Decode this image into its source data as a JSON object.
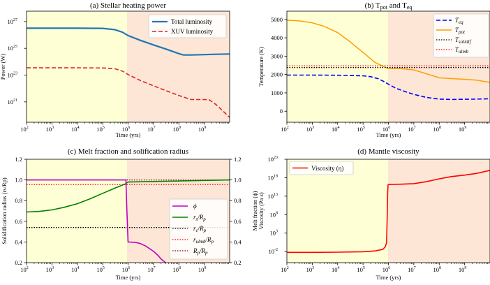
{
  "chart_data": [
    {
      "id": "a",
      "type": "line",
      "title": "(a) Stellar heating power",
      "xlabel": "Time (yrs)",
      "ylabel": "Power (W)",
      "xscale": "log",
      "yscale": "log",
      "xlim": [
        100,
        10000000000.0
      ],
      "ylim": [
        3e+19,
        6e+27
      ],
      "xticks": [
        {
          "b": "10",
          "e": "2"
        },
        {
          "b": "10",
          "e": "3"
        },
        {
          "b": "10",
          "e": "4"
        },
        {
          "b": "10",
          "e": "5"
        },
        {
          "b": "10",
          "e": "6"
        },
        {
          "b": "10",
          "e": "7"
        },
        {
          "b": "10",
          "e": "8"
        },
        {
          "b": "10",
          "e": "9"
        }
      ],
      "yticks": [
        {
          "b": "10",
          "e": "21"
        },
        {
          "b": "10",
          "e": "23"
        },
        {
          "b": "10",
          "e": "25"
        },
        {
          "b": "10",
          "e": "27"
        }
      ],
      "shade_split": 950000,
      "legend_position": "top-right",
      "series": [
        {
          "name": "Total luminosity",
          "color": "#1f77b4",
          "dash": "solid",
          "x": [
            100,
            1000.0,
            10000.0,
            100000.0,
            300000.0,
            600000.0,
            1000000.0,
            3000000.0,
            10000000.0,
            30000000.0,
            100000000.0,
            150000000.0,
            300000000.0,
            1000000000.0,
            3000000000.0,
            10000000000.0
          ],
          "y": [
            3.2e+26,
            3.2e+26,
            3.2e+26,
            3.1e+26,
            2.5e+26,
            1.6e+26,
            9e+25,
            4e+25,
            1.8e+25,
            9e+24,
            4e+24,
            3.2e+24,
            3.2e+24,
            3.4e+24,
            3.6e+24,
            3.8e+24
          ]
        },
        {
          "name": "XUV luminosity",
          "color": "#d62728",
          "dash": "dashed",
          "x": [
            100,
            1000.0,
            10000.0,
            100000.0,
            300000.0,
            600000.0,
            1000000.0,
            3000000.0,
            10000000.0,
            30000000.0,
            100000000.0,
            300000000.0,
            1000000000.0,
            1600000000.0,
            3000000000.0,
            10000000000.0
          ],
          "y": [
            3.5e+23,
            3.5e+23,
            3.5e+23,
            3.4e+23,
            3e+23,
            2e+23,
            1.1e+23,
            4e+22,
            1.6e+22,
            7e+21,
            3e+21,
            1.5e+21,
            1.5e+21,
            1.4e+21,
            6e+20,
            7e+19
          ]
        }
      ]
    },
    {
      "id": "b",
      "type": "line",
      "title_main": "(b) T",
      "title_sub1": "pot",
      "title_mid": " and T",
      "title_sub2": "eq",
      "xlabel": "Time (yrs)",
      "ylabel": "Temperature (K)",
      "xscale": "log",
      "yscale": "linear",
      "xlim": [
        100,
        10000000000.0
      ],
      "ylim": [
        -600,
        5450
      ],
      "xticks": [
        {
          "b": "10",
          "e": "2"
        },
        {
          "b": "10",
          "e": "3"
        },
        {
          "b": "10",
          "e": "4"
        },
        {
          "b": "10",
          "e": "5"
        },
        {
          "b": "10",
          "e": "6"
        },
        {
          "b": "10",
          "e": "7"
        },
        {
          "b": "10",
          "e": "8"
        },
        {
          "b": "10",
          "e": "9"
        }
      ],
      "yticks": [
        0,
        1000,
        2000,
        3000,
        4000,
        5000
      ],
      "shade_split": 950000,
      "legend_position": "top-right",
      "series": [
        {
          "name_main": "T",
          "name_sub": "eq",
          "color": "#0000ff",
          "dash": "dashed",
          "x": [
            100,
            1000.0,
            10000.0,
            100000.0,
            200000.0,
            400000.0,
            700000.0,
            1000000.0,
            2000000.0,
            5000000.0,
            10000000.0,
            30000000.0,
            100000000.0,
            300000000.0,
            1000000000.0,
            3000000000.0,
            10000000000.0
          ],
          "y": [
            1970,
            1970,
            1960,
            1930,
            1880,
            1770,
            1600,
            1470,
            1250,
            1050,
            920,
            760,
            660,
            640,
            650,
            660,
            680
          ]
        },
        {
          "name_main": "T",
          "name_sub": "pot",
          "color": "#ff9f00",
          "dash": "solid",
          "x": [
            100,
            300,
            1000.0,
            3000.0,
            10000.0,
            30000.0,
            100000.0,
            300000.0,
            1000000.0,
            3000000.0,
            10000000.0,
            30000000.0,
            100000000.0,
            300000000.0,
            1000000000.0,
            3000000000.0,
            10000000000.0
          ],
          "y": [
            4960,
            4920,
            4820,
            4620,
            4280,
            3800,
            3200,
            2650,
            2320,
            2320,
            2250,
            2050,
            1820,
            1780,
            1740,
            1690,
            1570
          ]
        },
        {
          "name_main": "T",
          "name_sub": "solidif",
          "color": "#000000",
          "dash": "dotted",
          "constant": 2380
        },
        {
          "name_main": "T",
          "name_sub": "ulmb",
          "color": "#ff0000",
          "dash": "dotted",
          "constant": 2470
        }
      ]
    },
    {
      "id": "c",
      "type": "line",
      "title": "(c) Melt fraction and solification radius",
      "xlabel": "Time (yrs)",
      "ylabel": "Solidification radius (rs/Rp)",
      "ylabel_right": "Melt fraction (ϕ)",
      "xscale": "log",
      "yscale": "linear",
      "xlim": [
        100,
        10000000000.0
      ],
      "ylim": [
        0.2,
        1.2
      ],
      "xticks": [
        {
          "b": "10",
          "e": "2"
        },
        {
          "b": "10",
          "e": "3"
        },
        {
          "b": "10",
          "e": "4"
        },
        {
          "b": "10",
          "e": "5"
        },
        {
          "b": "10",
          "e": "6"
        },
        {
          "b": "10",
          "e": "7"
        },
        {
          "b": "10",
          "e": "8"
        },
        {
          "b": "10",
          "e": "9"
        }
      ],
      "yticks": [
        "0.2",
        "0.4",
        "0.6",
        "0.8",
        "1.0",
        "1.2"
      ],
      "yticks_right": [
        "0.2",
        "0.4",
        "0.6",
        "0.8",
        "1.0",
        "1.2"
      ],
      "shade_split": 950000,
      "legend_position": "lower-right",
      "series": [
        {
          "name": "ϕ",
          "color": "#bf00bf",
          "dash": "solid",
          "x": [
            100,
            1000.0,
            10000.0,
            100000.0,
            500000.0,
            750000.0,
            820000.0,
            900000.0,
            1000000.0,
            2000000.0,
            3000000.0,
            5000000.0,
            10000000.0,
            15000000.0,
            20000000.0,
            25000000.0,
            30000000.0
          ],
          "y": [
            1.0,
            1.0,
            1.0,
            1.0,
            1.0,
            1.0,
            1.0,
            0.7,
            0.4,
            0.395,
            0.385,
            0.36,
            0.31,
            0.27,
            0.235,
            0.215,
            0.2
          ]
        },
        {
          "name": "rs/Rp",
          "color": "#008000",
          "dash": "solid",
          "x": [
            100,
            300,
            1000.0,
            3000.0,
            10000.0,
            30000.0,
            100000.0,
            300000.0,
            600000.0,
            700000.0,
            800000.0,
            900000.0,
            1000000.0,
            10000000.0,
            100000000.0,
            1000000000.0,
            10000000000.0
          ],
          "y": [
            0.69,
            0.695,
            0.71,
            0.735,
            0.77,
            0.815,
            0.87,
            0.92,
            0.95,
            0.957,
            0.963,
            0.973,
            0.98,
            0.985,
            0.99,
            0.995,
            1.0
          ]
        },
        {
          "name": "rc/Rp",
          "color": "#000000",
          "dash": "dotted",
          "constant": 0.54
        },
        {
          "name": "rulmb/Rp",
          "color": "#ff0000",
          "dash": "dotted",
          "constant": 0.955
        },
        {
          "name": "Rp/Rp",
          "color": "#800000",
          "dash": "dotted",
          "constant": 1.0
        }
      ],
      "legend_labels": [
        {
          "main": "ϕ",
          "sub": ""
        },
        {
          "main": "r",
          "sub": "s",
          "tail": "/R",
          "sub2": "p"
        },
        {
          "main": "r",
          "sub": "c",
          "tail": "/R",
          "sub2": "p"
        },
        {
          "main": "r",
          "sub": "ulmb",
          "tail": "/R",
          "sub2": "p"
        },
        {
          "main": "R",
          "sub": "p",
          "tail": "/R",
          "sub2": "p"
        }
      ]
    },
    {
      "id": "d",
      "type": "line",
      "title": "(d) Mantle viscosity",
      "xlabel": "Time (yrs)",
      "ylabel": "Viscosity (Pa s)",
      "xscale": "log",
      "yscale": "log",
      "xlim": [
        100,
        10000000000.0
      ],
      "ylim": [
        1e-05,
        1e+23
      ],
      "xticks": [
        {
          "b": "10",
          "e": "2"
        },
        {
          "b": "10",
          "e": "3"
        },
        {
          "b": "10",
          "e": "4"
        },
        {
          "b": "10",
          "e": "5"
        },
        {
          "b": "10",
          "e": "6"
        },
        {
          "b": "10",
          "e": "7"
        },
        {
          "b": "10",
          "e": "8"
        },
        {
          "b": "10",
          "e": "9"
        }
      ],
      "yticks": [
        {
          "b": "10",
          "e": "-2"
        },
        {
          "b": "10",
          "e": "3"
        },
        {
          "b": "10",
          "e": "8"
        },
        {
          "b": "10",
          "e": "13"
        },
        {
          "b": "10",
          "e": "18"
        },
        {
          "b": "10",
          "e": "23"
        }
      ],
      "shade_split": 950000,
      "legend_position": "top-left",
      "series": [
        {
          "name": "Viscosity (η)",
          "color": "#ff0000",
          "dash": "solid",
          "x": [
            100,
            1000.0,
            10000.0,
            100000.0,
            300000.0,
            600000.0,
            750000.0,
            850000.0,
            900000.0,
            930000.0,
            960000.0,
            1000000.0,
            3000000.0,
            10000000.0,
            30000000.0,
            100000000.0,
            300000000.0,
            1000000000.0,
            3000000000.0,
            10000000000.0
          ],
          "y": [
            0.006,
            0.006,
            0.007,
            0.009,
            0.015,
            0.04,
            0.2,
            3,
            100000000.0,
            100000000000000.0,
            1e+16,
            1.5e+16,
            1.8e+16,
            2.5e+16,
            8e+16,
            5e+17,
            2e+18,
            5e+18,
            1.5e+19,
            1e+20
          ]
        }
      ]
    }
  ]
}
